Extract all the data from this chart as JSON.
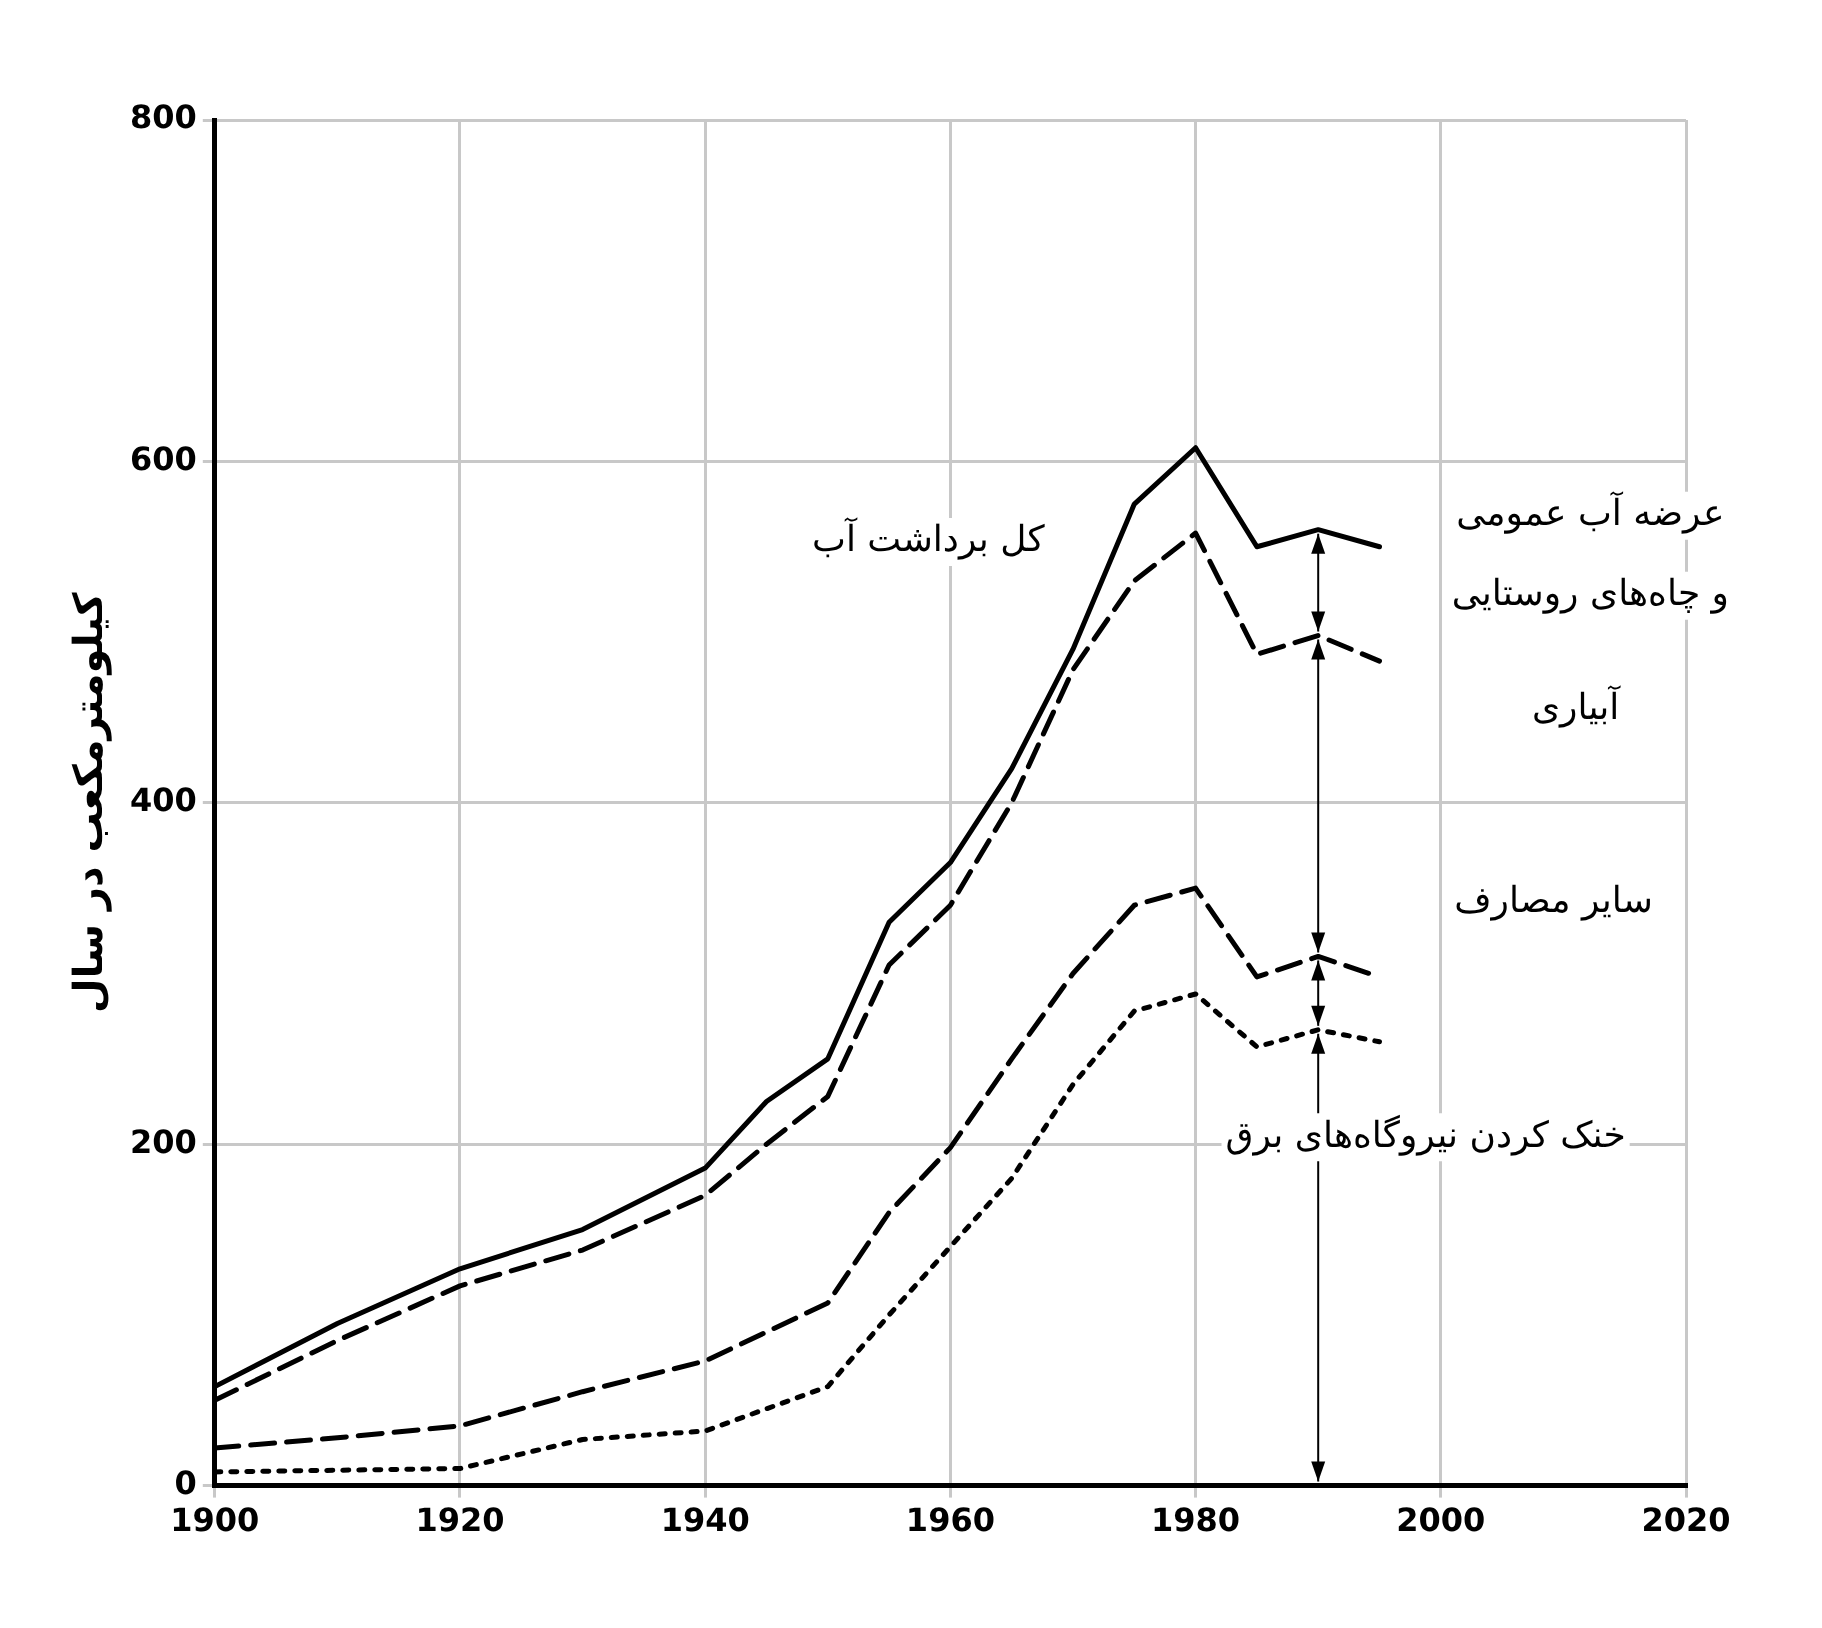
{
  "chart_data": {
    "type": "line",
    "ylabel": "کیلومترمکعب در سال",
    "x": [
      1900,
      1910,
      1920,
      1930,
      1940,
      1945,
      1950,
      1955,
      1960,
      1965,
      1970,
      1975,
      1980,
      1985,
      1990,
      1995
    ],
    "series": [
      {
        "color": "#000000",
        "line_style": "solid",
        "values": [
          58,
          95,
          127,
          150,
          186,
          225,
          250,
          330,
          365,
          420,
          490,
          575,
          608,
          550,
          560,
          550
        ]
      },
      {
        "color": "#000000",
        "line_style": "dashed",
        "values": [
          50,
          85,
          117,
          138,
          170,
          200,
          228,
          305,
          340,
          400,
          478,
          530,
          558,
          487,
          498,
          483
        ]
      },
      {
        "color": "#000000",
        "line_style": "dashed",
        "values": [
          22,
          28,
          35,
          55,
          73,
          90,
          107,
          160,
          198,
          250,
          300,
          340,
          350,
          298,
          310,
          298
        ]
      },
      {
        "color": "#000000",
        "line_style": "dotted",
        "values": [
          8,
          9,
          10,
          27,
          32,
          45,
          58,
          100,
          140,
          180,
          235,
          278,
          288,
          257,
          267,
          260
        ]
      }
    ],
    "xlim": [
      1900,
      2020
    ],
    "xticks": [
      1900,
      1920,
      1940,
      1960,
      1980,
      2000,
      2020
    ],
    "ylim": [
      0,
      800
    ],
    "yticks": [
      0,
      200,
      400,
      600,
      800
    ],
    "grid": true,
    "marker": "none",
    "annotations": [
      "کل برداشت آب",
      "عرضه آب عمومی\nو چاه‌های روستایی",
      "آبیاری",
      "سایر مصارف",
      "خنک کردن نیروگاه‌های برق"
    ]
  }
}
